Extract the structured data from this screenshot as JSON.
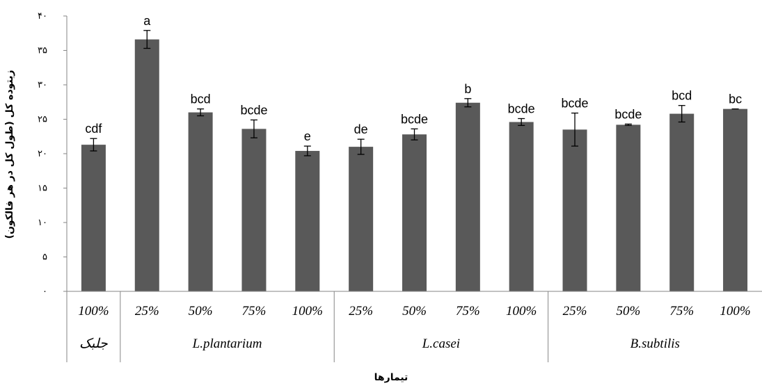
{
  "chart_data": {
    "type": "bar",
    "xlabel": "تیمارها",
    "ylabel": "زیتوده کل (طول کل در هر فالکون)",
    "ylim": [
      0,
      40
    ],
    "yticks": [
      0,
      5,
      10,
      15,
      20,
      25,
      30,
      35,
      40
    ],
    "ytick_labels": [
      "۰",
      "۵",
      "۱۰",
      "۱۵",
      "۲۰",
      "۲۵",
      "۳۰",
      "۳۵",
      "۴۰"
    ],
    "bar_color": "#595959",
    "categories": [
      "100%",
      "25%",
      "50%",
      "75%",
      "100%",
      "25%",
      "50%",
      "75%",
      "100%",
      "25%",
      "50%",
      "75%",
      "100%"
    ],
    "groups": [
      {
        "label": "جلبک",
        "count": 1
      },
      {
        "label": "L.plantarium",
        "count": 4
      },
      {
        "label": "L.casei",
        "count": 4
      },
      {
        "label": "B.subtilis",
        "count": 4
      }
    ],
    "values": [
      21.3,
      36.6,
      26.0,
      23.6,
      20.4,
      21.0,
      22.8,
      27.4,
      24.6,
      23.5,
      24.2,
      25.8,
      26.5
    ],
    "errors": [
      0.9,
      1.3,
      0.5,
      1.3,
      0.7,
      1.1,
      0.8,
      0.6,
      0.5,
      2.4,
      0.1,
      1.2,
      0.0
    ],
    "letters": [
      "cdf",
      "a",
      "bcd",
      "bcde",
      "e",
      "de",
      "bcde",
      "b",
      "bcde",
      "bcde",
      "bcde",
      "bcd",
      "bc"
    ]
  }
}
